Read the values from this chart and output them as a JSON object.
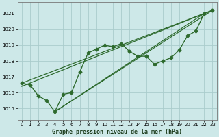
{
  "xlabel": "Graphe pression niveau de la mer (hPa)",
  "xlim": [
    -0.5,
    23.5
  ],
  "ylim": [
    1014.3,
    1021.7
  ],
  "yticks": [
    1015,
    1016,
    1017,
    1018,
    1019,
    1020,
    1021
  ],
  "xticks": [
    0,
    1,
    2,
    3,
    4,
    5,
    6,
    7,
    8,
    9,
    10,
    11,
    12,
    13,
    14,
    15,
    16,
    17,
    18,
    19,
    20,
    21,
    22,
    23
  ],
  "background_color": "#cde8e8",
  "grid_color": "#aacccc",
  "line_color": "#2d6a2d",
  "marker": "D",
  "markersize": 2.5,
  "linewidth": 1.0,
  "main_series": [
    1016.6,
    1016.5,
    1015.8,
    1015.5,
    1014.8,
    1015.9,
    1016.0,
    1017.3,
    1018.5,
    1018.75,
    1019.0,
    1018.9,
    1019.1,
    1018.6,
    1018.3,
    1018.3,
    1017.8,
    1018.0,
    1018.2,
    1018.7,
    1019.6,
    1019.9,
    1021.0,
    1021.2
  ],
  "straight_lines": [
    [
      [
        0,
        1016.6
      ],
      [
        23,
        1021.2
      ]
    ],
    [
      [
        0,
        1016.4
      ],
      [
        23,
        1021.2
      ]
    ],
    [
      [
        4,
        1014.8
      ],
      [
        23,
        1021.2
      ]
    ],
    [
      [
        4,
        1014.8
      ],
      [
        22,
        1021.0
      ]
    ]
  ]
}
